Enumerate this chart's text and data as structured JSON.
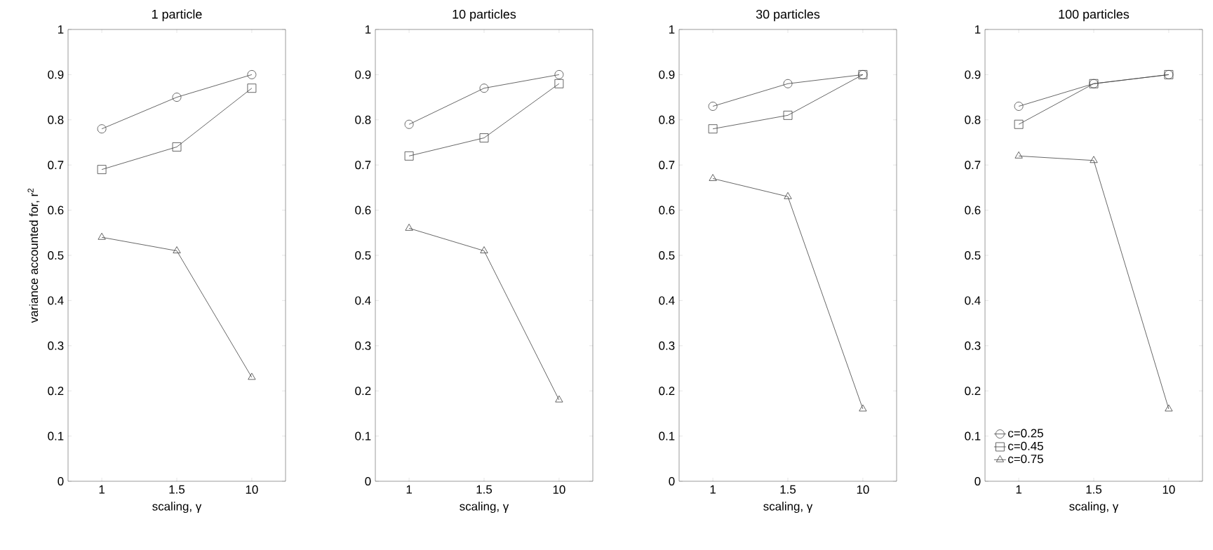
{
  "chart_data": [
    {
      "type": "line",
      "title": "1 particle",
      "xlabel": "scaling, γ",
      "ylabel": "variance accounted for, r$^{2}$",
      "categories": [
        "1",
        "1.5",
        "10"
      ],
      "ylim": [
        0,
        1
      ],
      "yticks": [
        0,
        0.1,
        0.2,
        0.3,
        0.4,
        0.5,
        0.6,
        0.7,
        0.8,
        0.9,
        1
      ],
      "series": [
        {
          "color": "#404040",
          "marker": "circle",
          "values": [
            0.78,
            0.85,
            0.9
          ]
        },
        {
          "color": "#404040",
          "marker": "square",
          "values": [
            0.69,
            0.74,
            0.87
          ]
        },
        {
          "color": "#404040",
          "marker": "triangle",
          "values": [
            0.54,
            0.51,
            0.23
          ]
        }
      ]
    },
    {
      "type": "line",
      "title": "10 particles",
      "xlabel": "scaling, γ",
      "categories": [
        "1",
        "1.5",
        "10"
      ],
      "ylim": [
        0,
        1
      ],
      "yticks": [
        0,
        0.1,
        0.2,
        0.3,
        0.4,
        0.5,
        0.6,
        0.7,
        0.8,
        0.9,
        1
      ],
      "series": [
        {
          "color": "#404040",
          "marker": "circle",
          "values": [
            0.79,
            0.87,
            0.9
          ]
        },
        {
          "color": "#404040",
          "marker": "square",
          "values": [
            0.72,
            0.76,
            0.88
          ]
        },
        {
          "color": "#404040",
          "marker": "triangle",
          "values": [
            0.56,
            0.51,
            0.18
          ]
        }
      ]
    },
    {
      "type": "line",
      "title": "30 particles",
      "xlabel": "scaling, γ",
      "categories": [
        "1",
        "1.5",
        "10"
      ],
      "ylim": [
        0,
        1
      ],
      "yticks": [
        0,
        0.1,
        0.2,
        0.3,
        0.4,
        0.5,
        0.6,
        0.7,
        0.8,
        0.9,
        1
      ],
      "series": [
        {
          "color": "#404040",
          "marker": "circle",
          "values": [
            0.83,
            0.88,
            0.9
          ]
        },
        {
          "color": "#404040",
          "marker": "square",
          "values": [
            0.78,
            0.81,
            0.9
          ]
        },
        {
          "color": "#404040",
          "marker": "triangle",
          "values": [
            0.67,
            0.63,
            0.16
          ]
        }
      ]
    },
    {
      "type": "line",
      "title": "100 particles",
      "xlabel": "scaling, γ",
      "categories": [
        "1",
        "1.5",
        "10"
      ],
      "ylim": [
        0,
        1
      ],
      "yticks": [
        0,
        0.1,
        0.2,
        0.3,
        0.4,
        0.5,
        0.6,
        0.7,
        0.8,
        0.9,
        1
      ],
      "legend": "bottom left",
      "series": [
        {
          "name": "c=0.25",
          "color": "#404040",
          "marker": "circle",
          "values": [
            0.83,
            0.88,
            0.9
          ]
        },
        {
          "name": "c=0.45",
          "color": "#404040",
          "marker": "square",
          "values": [
            0.79,
            0.88,
            0.9
          ]
        },
        {
          "name": "c=0.75",
          "color": "#404040",
          "marker": "triangle",
          "values": [
            0.72,
            0.71,
            0.16
          ]
        }
      ]
    }
  ]
}
